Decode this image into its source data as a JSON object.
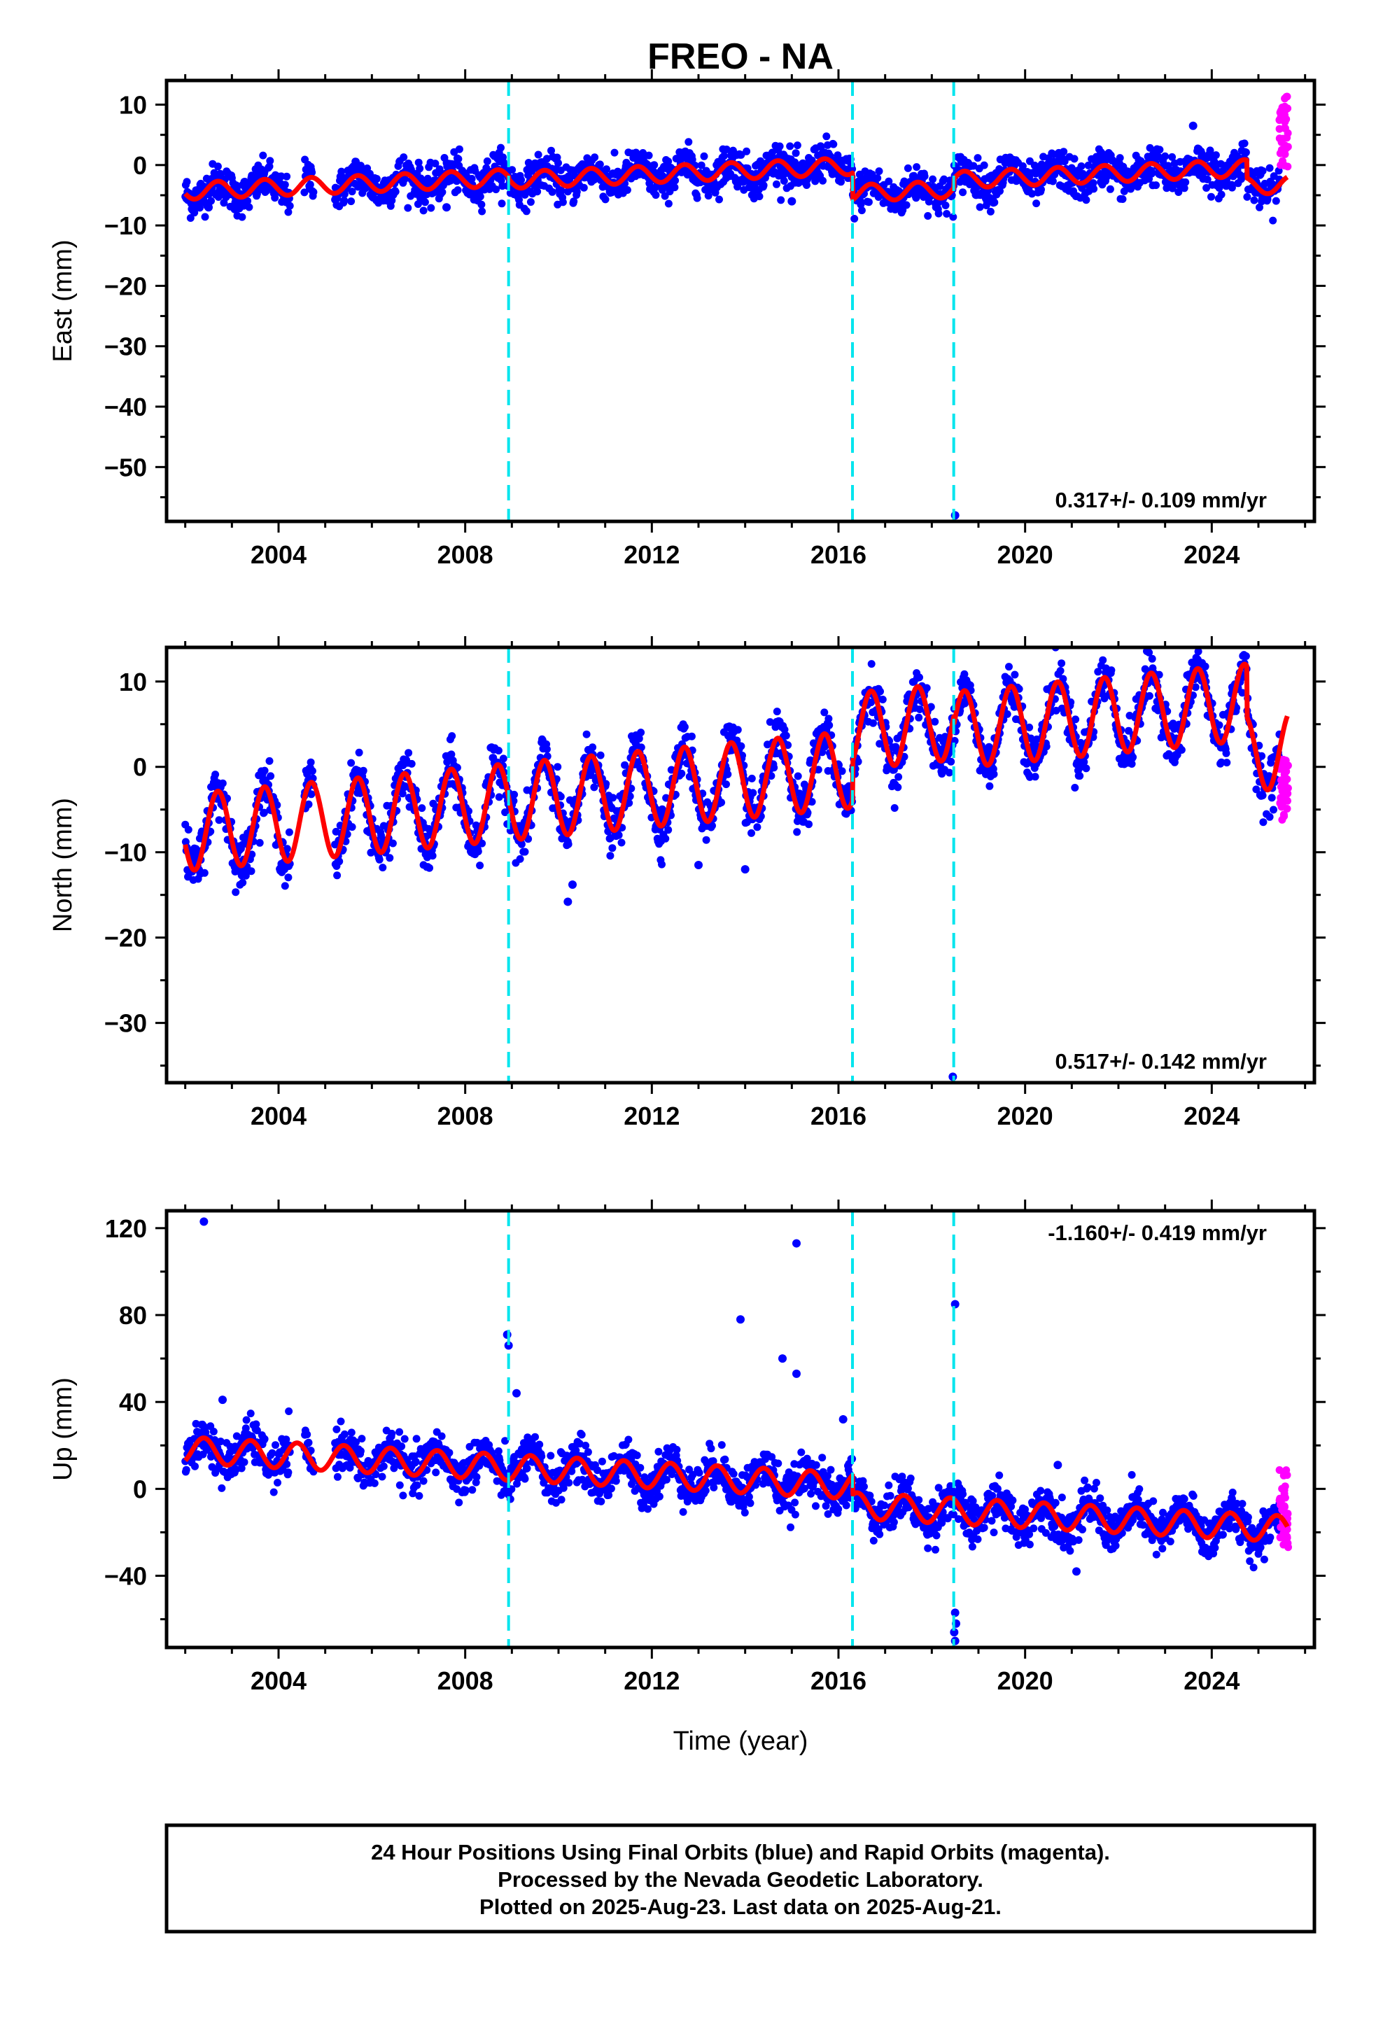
{
  "title": "FREO - NA",
  "footer": {
    "lines": [
      "24 Hour Positions Using Final Orbits (blue) and Rapid Orbits (magenta).",
      "Processed by the Nevada Geodetic Laboratory.",
      "Plotted on 2025-Aug-23. Last data on 2025-Aug-21."
    ]
  },
  "colors": {
    "final": "#0000ff",
    "rapid": "#ff00ff",
    "model": "#ff0000",
    "offsets": "#00e5ee"
  },
  "chart_data": [
    {
      "type": "scatter",
      "name": "east",
      "title": "",
      "ylabel": "East (mm)",
      "xlabel": "",
      "rate_label": "0.317+/- 0.109 mm/yr",
      "xlim": [
        2001.6,
        2026.2
      ],
      "ylim": [
        -59,
        14
      ],
      "x_ticks": [
        2004,
        2008,
        2012,
        2016,
        2020,
        2024
      ],
      "y_ticks": [
        10,
        0,
        -10,
        -20,
        -30,
        -40,
        -50
      ],
      "offsets": [
        2008.93,
        2016.3,
        2018.47
      ],
      "model": {
        "trend": 0.317,
        "ref_year": 2014,
        "intercept": -0.5,
        "seasonal_amp": 1.4,
        "phase": 0.45,
        "jumps": [
          [
            2008.93,
            -0.4
          ],
          [
            2016.3,
            -4.5
          ],
          [
            2018.47,
            1.5
          ],
          [
            2024.75,
            -3.0
          ]
        ]
      },
      "scatter": {
        "noise": 1.6,
        "outliers": [
          [
            2007.6,
            -7.0
          ],
          [
            2018.5,
            -58.0
          ],
          [
            2015.0,
            -6.0
          ],
          [
            2002.5,
            -7.0
          ],
          [
            2023.6,
            6.5
          ]
        ]
      },
      "rapid": {
        "x_range": [
          2025.45,
          2025.64
        ],
        "y_range": [
          -1,
          12
        ]
      }
    },
    {
      "type": "scatter",
      "name": "north",
      "title": "",
      "ylabel": "North (mm)",
      "xlabel": "",
      "rate_label": "0.517+/- 0.142 mm/yr",
      "xlim": [
        2001.6,
        2026.2
      ],
      "ylim": [
        -37,
        14
      ],
      "x_ticks": [
        2004,
        2008,
        2012,
        2016,
        2020,
        2024
      ],
      "y_ticks": [
        10,
        0,
        -10,
        -20,
        -30
      ],
      "offsets": [
        2008.93,
        2016.3,
        2018.47
      ],
      "model": {
        "trend": 0.517,
        "ref_year": 2014,
        "intercept": -1.5,
        "seasonal_amp": 4.5,
        "phase": 0.45,
        "jumps": [
          [
            2008.93,
            0.0
          ],
          [
            2016.3,
            4.5
          ],
          [
            2018.47,
            -1.0
          ],
          [
            2024.75,
            -6.0
          ]
        ]
      },
      "scatter": {
        "noise": 1.5,
        "outliers": [
          [
            2010.2,
            -15.8
          ],
          [
            2013.0,
            -11.5
          ],
          [
            2014.0,
            -12.0
          ],
          [
            2018.45,
            -36.3
          ],
          [
            2010.3,
            -13.8
          ]
        ]
      },
      "rapid": {
        "x_range": [
          2025.45,
          2025.64
        ],
        "y_range": [
          -7,
          1
        ]
      }
    },
    {
      "type": "scatter",
      "name": "up",
      "title": "",
      "ylabel": "Up (mm)",
      "xlabel": "Time (year)",
      "rate_label": "-1.160+/- 0.419 mm/yr",
      "xlim": [
        2001.6,
        2026.2
      ],
      "ylim": [
        -73,
        128
      ],
      "x_ticks": [
        2004,
        2008,
        2012,
        2016,
        2020,
        2024
      ],
      "y_ticks": [
        120,
        80,
        40,
        0,
        -40
      ],
      "offsets": [
        2008.93,
        2016.3,
        2018.47
      ],
      "model": {
        "trend": -1.16,
        "ref_year": 2014,
        "intercept": 4.0,
        "seasonal_amp": 6.0,
        "phase": 0.15,
        "jumps": [
          [
            2008.93,
            0.0
          ],
          [
            2016.3,
            -9.0
          ],
          [
            2018.47,
            0.0
          ]
        ]
      },
      "scatter": {
        "noise": 5.0,
        "outliers": [
          [
            2002.4,
            123.0
          ],
          [
            2008.9,
            71.0
          ],
          [
            2008.93,
            66.0
          ],
          [
            2009.1,
            44.0
          ],
          [
            2013.9,
            78.0
          ],
          [
            2014.8,
            60.0
          ],
          [
            2015.1,
            113.0
          ],
          [
            2015.1,
            53.0
          ],
          [
            2018.5,
            85.0
          ],
          [
            2018.5,
            -57.0
          ],
          [
            2018.52,
            -62.0
          ],
          [
            2018.48,
            -66.0
          ],
          [
            2018.5,
            -70.0
          ],
          [
            2021.1,
            -38.0
          ],
          [
            2020.7,
            11.0
          ],
          [
            2002.8,
            41.0
          ],
          [
            2016.1,
            32.0
          ]
        ]
      },
      "rapid": {
        "x_range": [
          2025.45,
          2025.64
        ],
        "y_range": [
          -28,
          9
        ]
      }
    }
  ]
}
